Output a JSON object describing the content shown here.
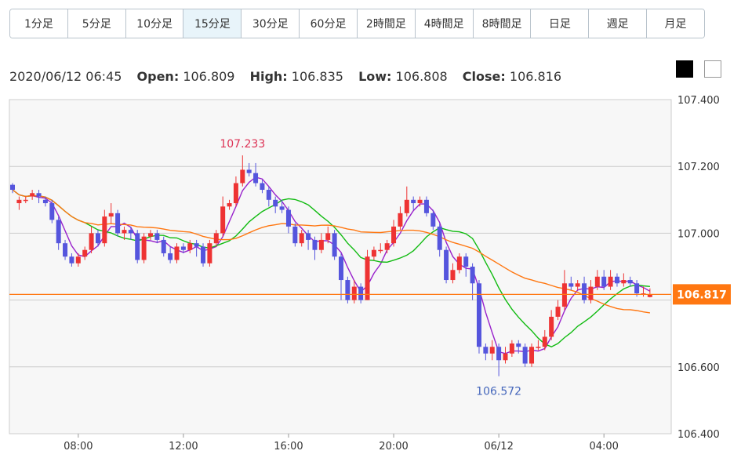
{
  "tabs": [
    {
      "label": "1分足"
    },
    {
      "label": "5分足"
    },
    {
      "label": "10分足"
    },
    {
      "label": "15分足"
    },
    {
      "label": "30分足"
    },
    {
      "label": "60分足"
    },
    {
      "label": "2時間足"
    },
    {
      "label": "4時間足"
    },
    {
      "label": "8時間足"
    },
    {
      "label": "日足"
    },
    {
      "label": "週足"
    },
    {
      "label": "月足"
    }
  ],
  "active_tab": "15分足",
  "ohlc": {
    "datetime": "2020/06/12 06:45",
    "open_label": "Open:",
    "open": "106.809",
    "high_label": "High:",
    "high": "106.835",
    "low_label": "Low:",
    "low": "106.808",
    "close_label": "Close:",
    "close": "106.816"
  },
  "colors": {
    "up": "#ee3333",
    "down": "#5555dd",
    "ma_short": "#9922cc",
    "ma_mid": "#11bb11",
    "ma_long": "#ff7711",
    "price_line": "#ff7711",
    "grid": "#cccccc",
    "plot_bg": "#f7f7f7",
    "high_annotation": "#dd3355",
    "low_annotation": "#4466bb"
  },
  "chart_data": {
    "type": "candlestick",
    "ylim": [
      106.4,
      107.4
    ],
    "y_ticks": [
      "107.400",
      "107.200",
      "107.000",
      "106.600",
      "106.400"
    ],
    "x_ticks": [
      "08:00",
      "12:00",
      "16:00",
      "20:00",
      "06/12",
      "04:00"
    ],
    "x_tick_bar_index": [
      10,
      26,
      42,
      58,
      74,
      90
    ],
    "current_price": "106.817",
    "annotations": {
      "high": "107.233",
      "high_bar_index": 35,
      "low": "106.572",
      "low_bar_index": 74
    },
    "candles": [
      [
        107.145,
        107.13,
        107.15,
        107.12
      ],
      [
        107.09,
        107.1,
        107.11,
        107.07
      ],
      [
        107.1,
        107.1,
        107.11,
        107.09
      ],
      [
        107.11,
        107.12,
        107.13,
        107.1
      ],
      [
        107.12,
        107.11,
        107.13,
        107.09
      ],
      [
        107.1,
        107.09,
        107.11,
        107.08
      ],
      [
        107.09,
        107.04,
        107.1,
        107.03
      ],
      [
        107.04,
        106.97,
        107.05,
        106.95
      ],
      [
        106.97,
        106.93,
        106.98,
        106.92
      ],
      [
        106.93,
        106.91,
        106.94,
        106.9
      ],
      [
        106.91,
        106.93,
        106.94,
        106.9
      ],
      [
        106.93,
        106.95,
        106.96,
        106.92
      ],
      [
        106.95,
        107.0,
        107.02,
        106.94
      ],
      [
        107.0,
        106.97,
        107.01,
        106.96
      ],
      [
        106.97,
        107.05,
        107.07,
        106.96
      ],
      [
        107.05,
        107.06,
        107.09,
        107.03
      ],
      [
        107.06,
        107.0,
        107.07,
        106.99
      ],
      [
        107.0,
        107.01,
        107.02,
        106.98
      ],
      [
        107.01,
        107.0,
        107.02,
        106.98
      ],
      [
        107.0,
        106.92,
        107.01,
        106.91
      ],
      [
        106.92,
        106.99,
        107.0,
        106.91
      ],
      [
        106.99,
        107.0,
        107.01,
        106.98
      ],
      [
        107.0,
        106.98,
        107.01,
        106.97
      ],
      [
        106.98,
        106.94,
        106.99,
        106.93
      ],
      [
        106.94,
        106.92,
        106.96,
        106.91
      ],
      [
        106.92,
        106.96,
        106.97,
        106.91
      ],
      [
        106.96,
        106.95,
        106.97,
        106.94
      ],
      [
        106.95,
        106.97,
        106.98,
        106.94
      ],
      [
        106.97,
        106.96,
        106.98,
        106.93
      ],
      [
        106.96,
        106.91,
        106.97,
        106.9
      ],
      [
        106.91,
        106.97,
        106.98,
        106.9
      ],
      [
        106.97,
        107.0,
        107.01,
        106.96
      ],
      [
        107.0,
        107.08,
        107.11,
        106.99
      ],
      [
        107.08,
        107.09,
        107.1,
        107.07
      ],
      [
        107.09,
        107.15,
        107.17,
        107.08
      ],
      [
        107.15,
        107.19,
        107.233,
        107.14
      ],
      [
        107.19,
        107.18,
        107.21,
        107.17
      ],
      [
        107.18,
        107.15,
        107.21,
        107.14
      ],
      [
        107.15,
        107.13,
        107.16,
        107.12
      ],
      [
        107.13,
        107.1,
        107.14,
        107.08
      ],
      [
        107.1,
        107.08,
        107.11,
        107.06
      ],
      [
        107.08,
        107.07,
        107.1,
        107.06
      ],
      [
        107.07,
        107.02,
        107.08,
        107.0
      ],
      [
        107.02,
        106.97,
        107.03,
        106.96
      ],
      [
        106.97,
        107.0,
        107.01,
        106.96
      ],
      [
        107.0,
        106.98,
        107.01,
        106.95
      ],
      [
        106.98,
        106.95,
        106.99,
        106.92
      ],
      [
        106.95,
        106.98,
        107.0,
        106.94
      ],
      [
        106.98,
        107.0,
        107.02,
        106.97
      ],
      [
        107.0,
        106.93,
        107.01,
        106.92
      ],
      [
        106.93,
        106.86,
        106.94,
        106.8
      ],
      [
        106.86,
        106.8,
        106.87,
        106.79
      ],
      [
        106.8,
        106.84,
        106.86,
        106.79
      ],
      [
        106.84,
        106.8,
        106.85,
        106.79
      ],
      [
        106.8,
        106.93,
        106.95,
        106.8
      ],
      [
        106.93,
        106.95,
        106.96,
        106.92
      ],
      [
        106.95,
        106.95,
        106.97,
        106.94
      ],
      [
        106.95,
        106.97,
        106.98,
        106.94
      ],
      [
        106.97,
        107.02,
        107.04,
        106.96
      ],
      [
        107.02,
        107.06,
        107.08,
        107.01
      ],
      [
        107.06,
        107.1,
        107.14,
        107.05
      ],
      [
        107.1,
        107.09,
        107.11,
        107.07
      ],
      [
        107.09,
        107.1,
        107.11,
        107.08
      ],
      [
        107.1,
        107.06,
        107.11,
        107.05
      ],
      [
        107.06,
        107.02,
        107.07,
        107.01
      ],
      [
        107.02,
        106.95,
        107.03,
        106.93
      ],
      [
        106.95,
        106.86,
        106.96,
        106.85
      ],
      [
        106.86,
        106.89,
        106.91,
        106.85
      ],
      [
        106.89,
        106.93,
        106.94,
        106.88
      ],
      [
        106.93,
        106.9,
        106.94,
        106.87
      ],
      [
        106.9,
        106.85,
        106.91,
        106.8
      ],
      [
        106.85,
        106.66,
        106.86,
        106.64
      ],
      [
        106.66,
        106.64,
        106.67,
        106.62
      ],
      [
        106.64,
        106.66,
        106.68,
        106.62
      ],
      [
        106.66,
        106.62,
        106.67,
        106.572
      ],
      [
        106.62,
        106.64,
        106.66,
        106.61
      ],
      [
        106.64,
        106.67,
        106.68,
        106.63
      ],
      [
        106.67,
        106.66,
        106.68,
        106.64
      ],
      [
        106.66,
        106.61,
        106.67,
        106.6
      ],
      [
        106.61,
        106.66,
        106.67,
        106.6
      ],
      [
        106.66,
        106.66,
        106.68,
        106.65
      ],
      [
        106.66,
        106.69,
        106.71,
        106.65
      ],
      [
        106.69,
        106.75,
        106.77,
        106.68
      ],
      [
        106.75,
        106.78,
        106.8,
        106.74
      ],
      [
        106.78,
        106.85,
        106.89,
        106.77
      ],
      [
        106.85,
        106.84,
        106.87,
        106.83
      ],
      [
        106.84,
        106.85,
        106.86,
        106.83
      ],
      [
        106.85,
        106.8,
        106.87,
        106.79
      ],
      [
        106.8,
        106.84,
        106.86,
        106.79
      ],
      [
        106.84,
        106.87,
        106.89,
        106.83
      ],
      [
        106.87,
        106.84,
        106.89,
        106.83
      ],
      [
        106.84,
        106.87,
        106.89,
        106.83
      ],
      [
        106.87,
        106.85,
        106.88,
        106.84
      ],
      [
        106.85,
        106.86,
        106.88,
        106.84
      ],
      [
        106.86,
        106.85,
        106.87,
        106.84
      ],
      [
        106.85,
        106.82,
        106.86,
        106.81
      ],
      [
        106.82,
        106.82,
        106.84,
        106.81
      ],
      [
        106.809,
        106.816,
        106.835,
        106.808
      ]
    ]
  }
}
